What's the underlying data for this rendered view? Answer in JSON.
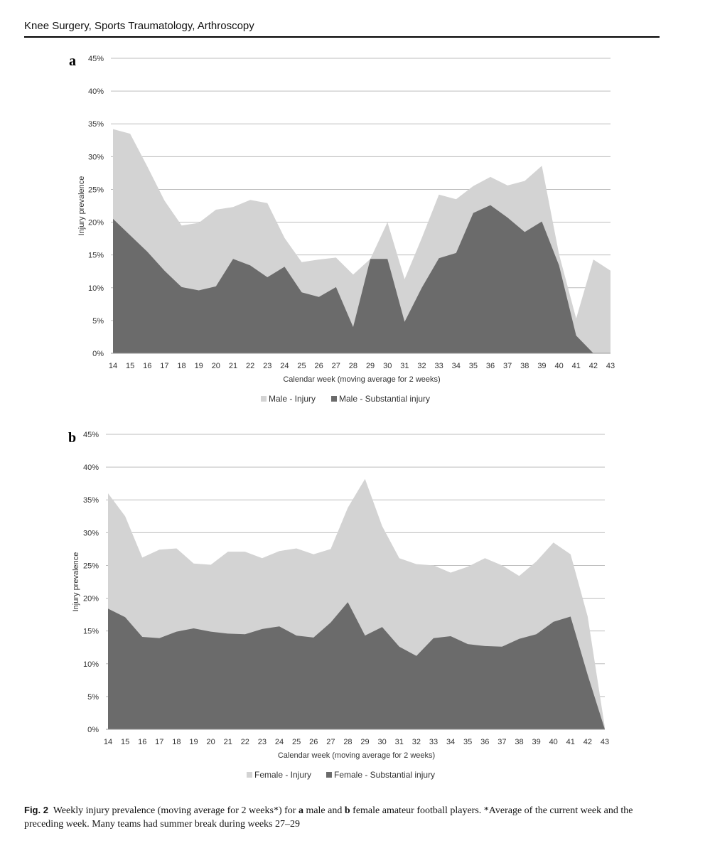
{
  "header": {
    "journal": "Knee Surgery, Sports Traumatology, Arthroscopy"
  },
  "colors": {
    "injury": "#d3d3d3",
    "substantial": "#6b6b6b",
    "grid": "#bdbdbd"
  },
  "chart_data": [
    {
      "type": "area",
      "panel": "a",
      "xlabel": "Calendar week (moving average for 2 weeks)",
      "ylabel": "Injury prevalence",
      "ylim": [
        0,
        45
      ],
      "yticks": [
        "0%",
        "5%",
        "10%",
        "15%",
        "20%",
        "25%",
        "30%",
        "35%",
        "40%",
        "45%"
      ],
      "grid": true,
      "legend": "bottom",
      "x": [
        14,
        15,
        16,
        17,
        18,
        19,
        20,
        21,
        22,
        23,
        24,
        25,
        26,
        27,
        28,
        29,
        30,
        31,
        32,
        33,
        34,
        35,
        36,
        37,
        38,
        39,
        40,
        41,
        42,
        43
      ],
      "series": [
        {
          "name": "Male -  Injury",
          "color": "#d3d3d3",
          "values": [
            34.2,
            33.5,
            28.5,
            23.3,
            19.5,
            19.9,
            21.9,
            22.3,
            23.4,
            22.9,
            17.6,
            13.9,
            14.3,
            14.6,
            12.0,
            14.4,
            20.0,
            11.3,
            17.6,
            24.2,
            23.5,
            25.5,
            26.9,
            25.6,
            26.3,
            28.6,
            15.1,
            5.3,
            14.3,
            12.6
          ]
        },
        {
          "name": "Male -  Substantial injury",
          "color": "#6b6b6b",
          "values": [
            20.5,
            18.0,
            15.5,
            12.6,
            10.1,
            9.6,
            10.2,
            14.4,
            13.4,
            11.6,
            13.2,
            9.3,
            8.6,
            10.1,
            4.0,
            14.4,
            14.4,
            4.8,
            10.0,
            14.5,
            15.3,
            21.4,
            22.6,
            20.7,
            18.5,
            20.1,
            13.4,
            2.7,
            0.0,
            0.0
          ]
        }
      ]
    },
    {
      "type": "area",
      "panel": "b",
      "xlabel": "Calendar week (moving average for 2 weeks)",
      "ylabel": "Injury prevalence",
      "ylim": [
        0,
        45
      ],
      "yticks": [
        "0%",
        "5%",
        "10%",
        "15%",
        "20%",
        "25%",
        "30%",
        "35%",
        "40%",
        "45%"
      ],
      "grid": true,
      "legend": "bottom",
      "x": [
        14,
        15,
        16,
        17,
        18,
        19,
        20,
        21,
        22,
        23,
        24,
        25,
        26,
        27,
        28,
        29,
        30,
        31,
        32,
        33,
        34,
        35,
        36,
        37,
        38,
        39,
        40,
        41,
        42,
        43
      ],
      "series": [
        {
          "name": "Female -  Injury",
          "color": "#d3d3d3",
          "values": [
            36.0,
            32.5,
            26.2,
            27.4,
            27.6,
            25.3,
            25.1,
            27.1,
            27.1,
            26.1,
            27.2,
            27.6,
            26.7,
            27.5,
            33.8,
            38.2,
            31.0,
            26.1,
            25.2,
            25.0,
            23.9,
            24.8,
            26.1,
            25.0,
            23.4,
            25.6,
            28.5,
            26.7,
            17.2,
            0.3
          ]
        },
        {
          "name": "Female -  Substantial injury",
          "color": "#6b6b6b",
          "values": [
            18.4,
            17.1,
            14.1,
            13.9,
            14.9,
            15.4,
            14.9,
            14.6,
            14.5,
            15.3,
            15.7,
            14.3,
            14.0,
            16.3,
            19.4,
            14.3,
            15.6,
            12.6,
            11.2,
            13.9,
            14.2,
            13.0,
            12.7,
            12.6,
            13.8,
            14.5,
            16.4,
            17.2,
            8.3,
            0.0
          ]
        }
      ]
    }
  ],
  "caption": {
    "label": "Fig. 2",
    "before_a": "Weekly injury prevalence (moving average for 2 weeks*) for",
    "a": "a",
    "between": "male and",
    "b": "b",
    "after_b": "female amateur football players. *Average of the current week and the preceding week. Many teams had summer break during weeks 27–29"
  }
}
